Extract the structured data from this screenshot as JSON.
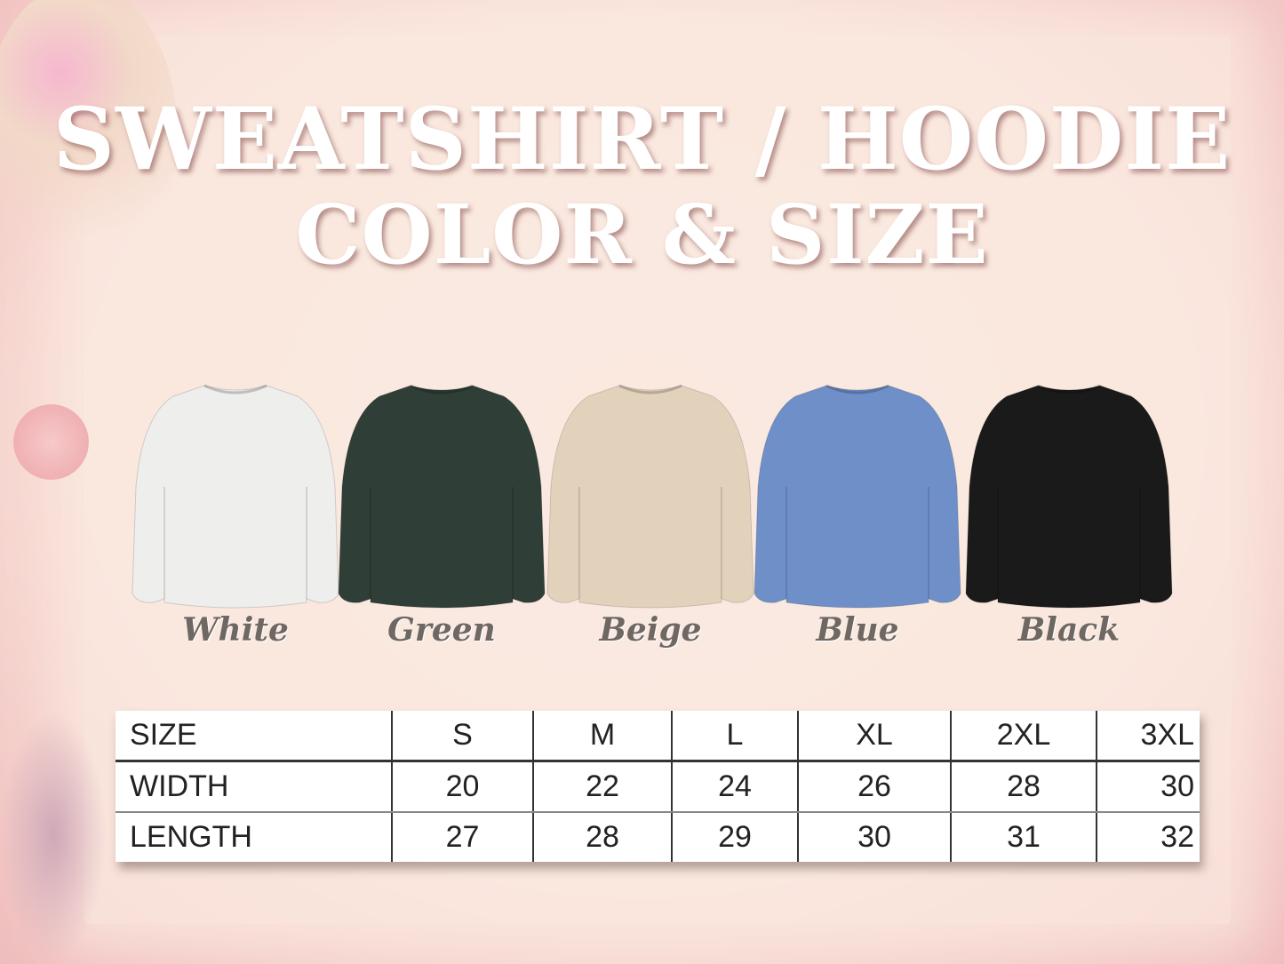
{
  "title_line1": "SWEATSHIRT / HOODIE",
  "title_line2": "COLOR & SIZE",
  "colors": [
    {
      "label": "White",
      "hex": "#eeeeec"
    },
    {
      "label": "Green",
      "hex": "#2f3e36"
    },
    {
      "label": "Beige",
      "hex": "#e3d2bb"
    },
    {
      "label": "Blue",
      "hex": "#6f8fc8"
    },
    {
      "label": "Black",
      "hex": "#1a1a1a"
    }
  ],
  "size_table": {
    "header": [
      "SIZE",
      "S",
      "M",
      "L",
      "XL",
      "2XL",
      "3XL"
    ],
    "rows": [
      [
        "WIDTH",
        "20",
        "22",
        "24",
        "26",
        "28",
        "30"
      ],
      [
        "LENGTH",
        "27",
        "28",
        "29",
        "30",
        "31",
        "32"
      ]
    ]
  }
}
